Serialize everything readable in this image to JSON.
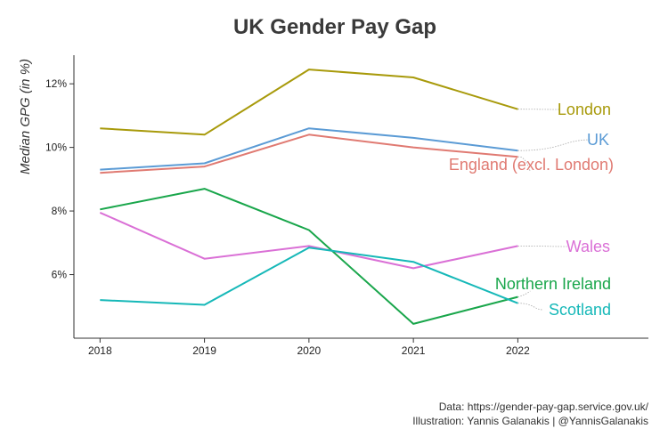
{
  "chart_data": {
    "type": "line",
    "title": "UK Gender Pay Gap",
    "ylabel": "Median GPG (in %)",
    "xlabel": "",
    "x": [
      2018,
      2019,
      2020,
      2021,
      2022
    ],
    "xlim": [
      2017.75,
      2023.25
    ],
    "ylim": [
      4.0,
      12.9
    ],
    "yticks": [
      6,
      8,
      10,
      12
    ],
    "ytick_labels": [
      "6%",
      "8%",
      "10%",
      "12%"
    ],
    "grid": false,
    "legend": "direct labels at line ends",
    "series": [
      {
        "name": "London",
        "values": [
          10.6,
          10.4,
          12.45,
          12.2,
          11.2
        ],
        "color": "#a89a0b"
      },
      {
        "name": "UK",
        "values": [
          9.3,
          9.5,
          10.6,
          10.3,
          9.9
        ],
        "color": "#5b9bd5"
      },
      {
        "name": "England (excl. London)",
        "values": [
          9.2,
          9.4,
          10.4,
          10.0,
          9.7
        ],
        "color": "#e07a72"
      },
      {
        "name": "Wales",
        "values": [
          7.95,
          6.5,
          6.9,
          6.2,
          6.9
        ],
        "color": "#da70d6"
      },
      {
        "name": "Northern Ireland",
        "values": [
          8.05,
          8.7,
          7.4,
          4.45,
          5.3
        ],
        "color": "#19a64b"
      },
      {
        "name": "Scotland",
        "values": [
          5.2,
          5.05,
          6.85,
          6.4,
          5.1
        ],
        "color": "#16b8b8"
      }
    ]
  },
  "caption": {
    "line1": "Data: https://gender-pay-gap.service.gov.uk/",
    "line2": "Illustration: Yannis Galanakis | @YannisGalanakis"
  },
  "colors": {
    "title": "#3a3a3a",
    "axis": "#333333",
    "leader": "#aaaaaa"
  }
}
